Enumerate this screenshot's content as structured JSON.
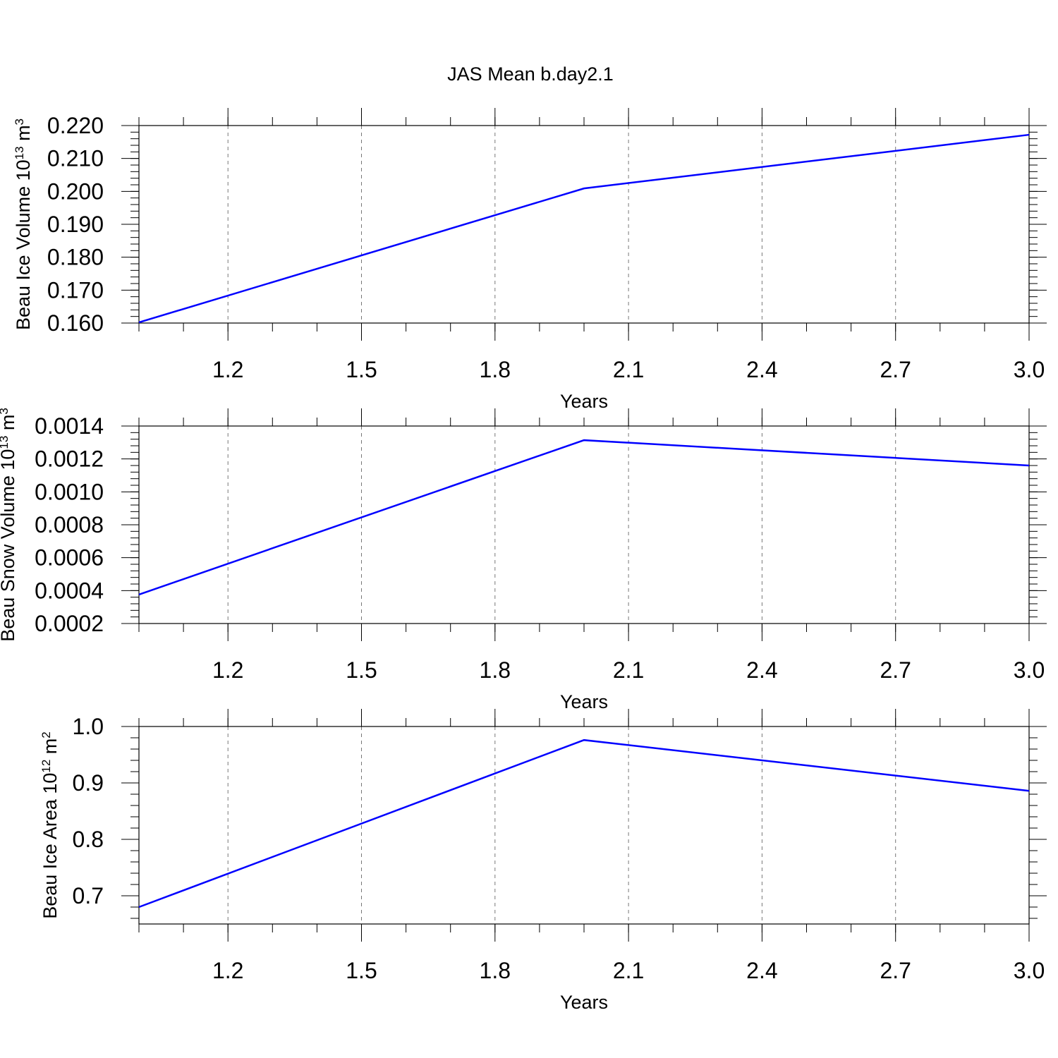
{
  "title": "JAS Mean b.day2.1",
  "chart_data": [
    {
      "type": "line",
      "xlabel": "Years",
      "ylabel": [
        "Beau Ice Volume 10",
        "13",
        " m",
        "3"
      ],
      "x": [
        1,
        2,
        3
      ],
      "series": [
        {
          "color": "#0000ff",
          "values": [
            0.1602,
            0.2009,
            0.2172
          ]
        }
      ],
      "xlim": [
        1,
        3
      ],
      "xticks": [
        1.2,
        1.5,
        1.8,
        2.1,
        2.4,
        2.7,
        {
          "value": 3,
          "label": "3.0"
        }
      ],
      "ylim": [
        0.16,
        0.22
      ],
      "yticks": [
        {
          "value": 0.16,
          "label": "0.160"
        },
        {
          "value": 0.17,
          "label": "0.170"
        },
        {
          "value": 0.18,
          "label": "0.180"
        },
        {
          "value": 0.19,
          "label": "0.190"
        },
        {
          "value": 0.2,
          "label": "0.200"
        },
        {
          "value": 0.21,
          "label": "0.210"
        },
        {
          "value": 0.22,
          "label": "0.220"
        }
      ],
      "grid": true
    },
    {
      "type": "line",
      "xlabel": "Years",
      "ylabel": [
        "Beau Snow Volume 10",
        "13",
        " m",
        "3"
      ],
      "x": [
        1,
        2,
        3
      ],
      "series": [
        {
          "color": "#0000ff",
          "values": [
            0.000376,
            0.001314,
            0.00116
          ]
        }
      ],
      "xlim": [
        1,
        3
      ],
      "xticks": [
        1.2,
        1.5,
        1.8,
        2.1,
        2.4,
        2.7,
        {
          "value": 3,
          "label": "3.0"
        }
      ],
      "ylim": [
        0.0002,
        0.0014
      ],
      "yticks": [
        0.0002,
        0.0004,
        0.0006,
        0.0008,
        {
          "value": 0.001,
          "label": "0.0010"
        },
        0.0012,
        0.0014
      ],
      "grid": true
    },
    {
      "type": "line",
      "xlabel": "Years",
      "ylabel": [
        "Beau Ice Area 10",
        "12",
        " m",
        "2"
      ],
      "x": [
        1,
        2,
        3
      ],
      "series": [
        {
          "color": "#0000ff",
          "values": [
            0.68,
            0.976,
            0.886
          ]
        }
      ],
      "xlim": [
        1,
        3
      ],
      "xticks": [
        1.2,
        1.5,
        1.8,
        2.1,
        2.4,
        2.7,
        {
          "value": 3,
          "label": "3.0"
        }
      ],
      "ylim": [
        0.65,
        1.0
      ],
      "yticks": [
        0.7,
        0.8,
        0.9,
        {
          "value": 1,
          "label": "1.0"
        }
      ],
      "grid": true
    }
  ]
}
